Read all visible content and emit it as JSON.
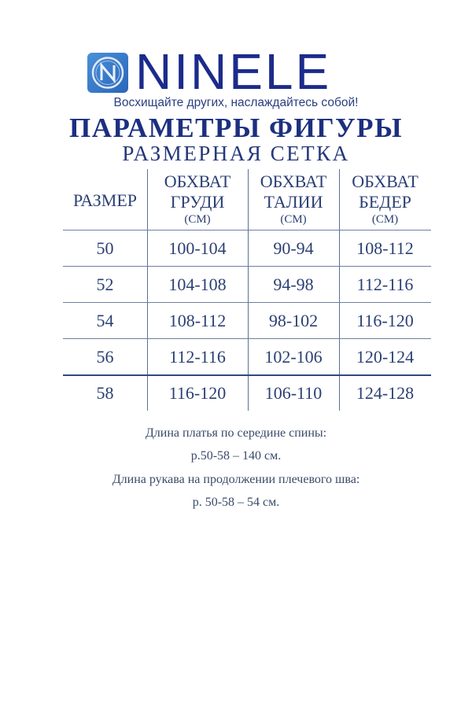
{
  "brand": {
    "name": "NINELE",
    "logo_letter": "N",
    "slogan": "Восхищайте других, наслаждайтесь собой!",
    "color": "#1c2b8c"
  },
  "title": "ПАРАМЕТРЫ ФИГУРЫ",
  "subtitle": "РАЗМЕРНАЯ СЕТКА",
  "table": {
    "headers": [
      {
        "line1": "РАЗМЕР"
      },
      {
        "line1": "ОБХВАТ",
        "line2": "ГРУДИ",
        "unit": "(СМ)"
      },
      {
        "line1": "ОБХВАТ",
        "line2": "ТАЛИИ",
        "unit": "(СМ)"
      },
      {
        "line1": "ОБХВАТ",
        "line2": "БЕДЕР",
        "unit": "(СМ)"
      }
    ],
    "rows": [
      [
        "50",
        "100-104",
        "90-94",
        "108-112"
      ],
      [
        "52",
        "104-108",
        "94-98",
        "112-116"
      ],
      [
        "54",
        "108-112",
        "98-102",
        "116-120"
      ],
      [
        "56",
        "112-116",
        "102-106",
        "120-124"
      ],
      [
        "58",
        "116-120",
        "106-110",
        "124-128"
      ]
    ]
  },
  "notes": [
    "Длина платья по середине спины:",
    "р.50-58 – 140 см.",
    "Длина рукава на продолжении плечевого шва:",
    "р. 50-58 – 54 см."
  ]
}
